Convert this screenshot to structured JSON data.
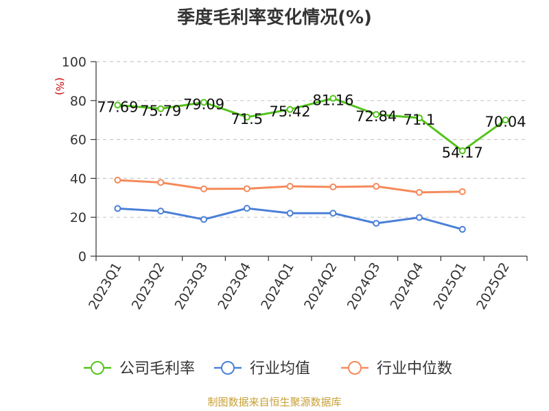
{
  "chart_data": {
    "type": "line",
    "title": "季度毛利率变化情况(%)",
    "ylabel": "(%)",
    "ylim": [
      0,
      100
    ],
    "yticks": [
      0,
      20,
      40,
      60,
      80,
      100
    ],
    "categories": [
      "2023Q1",
      "2023Q2",
      "2023Q3",
      "2023Q4",
      "2024Q1",
      "2024Q2",
      "2024Q3",
      "2024Q4",
      "2025Q1",
      "2025Q2"
    ],
    "series": [
      {
        "name": "公司毛利率",
        "color": "#52c41a",
        "show_labels": true,
        "values": [
          77.69,
          75.79,
          79.09,
          71.5,
          75.42,
          81.16,
          72.84,
          71.1,
          54.17,
          70.04
        ]
      },
      {
        "name": "行业均值",
        "color": "#4a7fd8",
        "show_labels": false,
        "values": [
          24.5,
          23.2,
          18.9,
          24.6,
          22.1,
          22.1,
          16.9,
          19.9,
          13.8,
          null
        ]
      },
      {
        "name": "行业中位数",
        "color": "#f5895a",
        "show_labels": false,
        "values": [
          39.1,
          37.9,
          34.6,
          34.7,
          35.9,
          35.6,
          35.9,
          32.8,
          33.2,
          null
        ]
      }
    ],
    "grid": true,
    "legend": "bottom",
    "source": "制图数据来自恒生聚源数据库"
  }
}
